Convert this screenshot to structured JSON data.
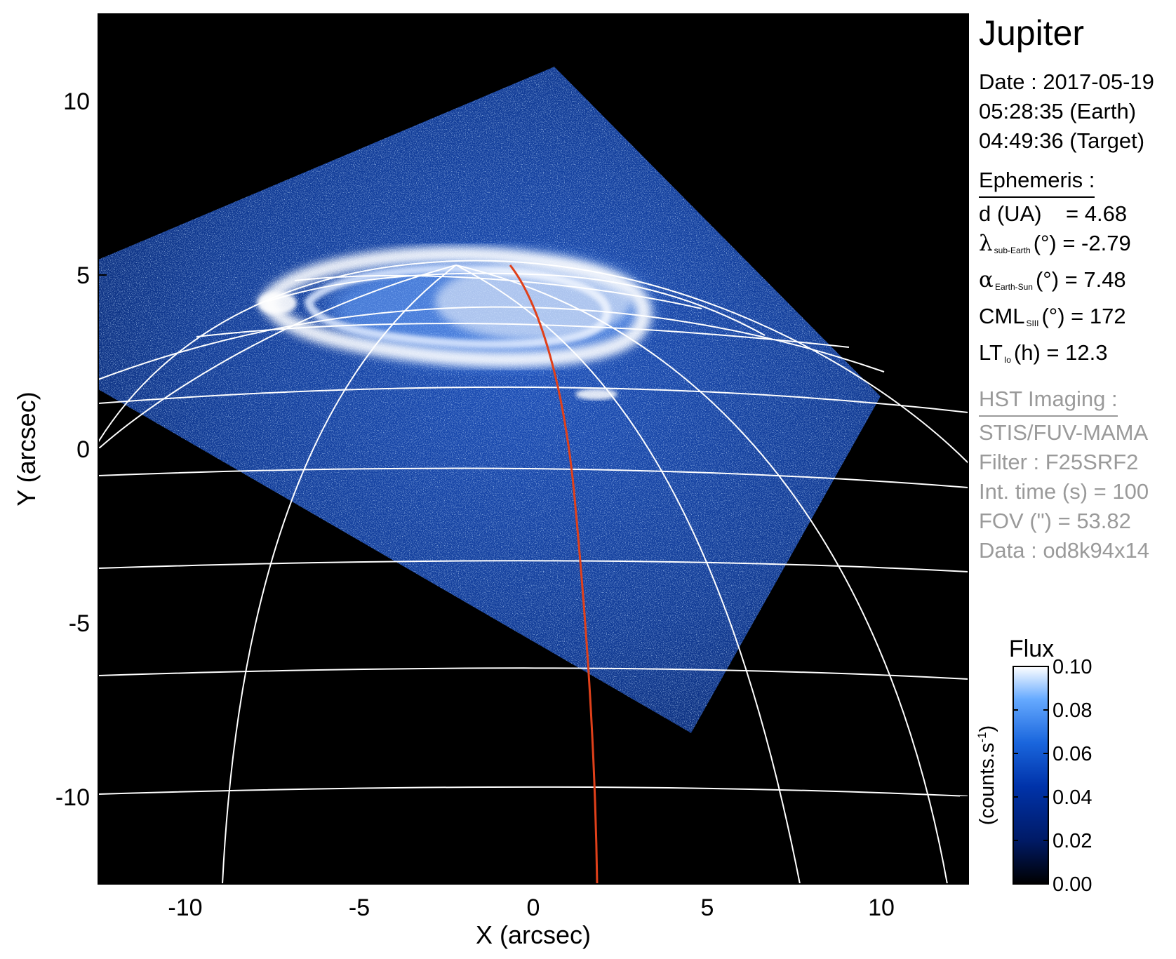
{
  "figure": {
    "title": "Jupiter",
    "xlabel": "X (arcsec)",
    "ylabel": "Y (arcsec)",
    "x_ticks": [
      "-10",
      "-5",
      "0",
      "5",
      "10"
    ],
    "y_ticks": [
      "10",
      "5",
      "0",
      "-5",
      "-10"
    ],
    "xlim": [
      -12.5,
      12.5
    ],
    "ylim": [
      -12.5,
      12.5
    ],
    "background_color": "#000000",
    "grid_color": "#ffffff",
    "meridian_line_color": "#e0401a",
    "emission_colormap": [
      "#000000",
      "#001a66",
      "#0033aa",
      "#1a66dd",
      "#66aaff",
      "#ffffff"
    ]
  },
  "info": {
    "date_line": "Date : 2017-05-19",
    "earth_time": "05:28:35 (Earth)",
    "target_time": "04:49:36 (Target)",
    "ephemeris_header": "Ephemeris :",
    "d_label": "d (UA)",
    "d_value": "= 4.68",
    "lambda_symbol": "λ",
    "lambda_sub": "sub-Earth",
    "lambda_value": "(°) = -2.79",
    "alpha_symbol": "α",
    "alpha_sub": "Earth-Sun",
    "alpha_value": "(°) = 7.48",
    "cml_label": "CML",
    "cml_sub": "SIII",
    "cml_value": "(°) = 172",
    "lt_label": "LT",
    "lt_sub": "Io",
    "lt_value": "(h) = 12.3",
    "hst_header": "HST Imaging :",
    "instrument": "STIS/FUV-MAMA",
    "filter": "Filter : F25SRF2",
    "int_time": "Int. time (s) = 100",
    "fov": "FOV (\") = 53.82",
    "data_id": "Data : od8k94x14"
  },
  "colorbar": {
    "title": "Flux",
    "unit_label": "(counts.s",
    "unit_sup": "-1",
    "unit_close": ")",
    "ticks": [
      "0.10",
      "0.08",
      "0.06",
      "0.04",
      "0.02",
      "0.00"
    ],
    "range": [
      0.0,
      0.1
    ]
  }
}
